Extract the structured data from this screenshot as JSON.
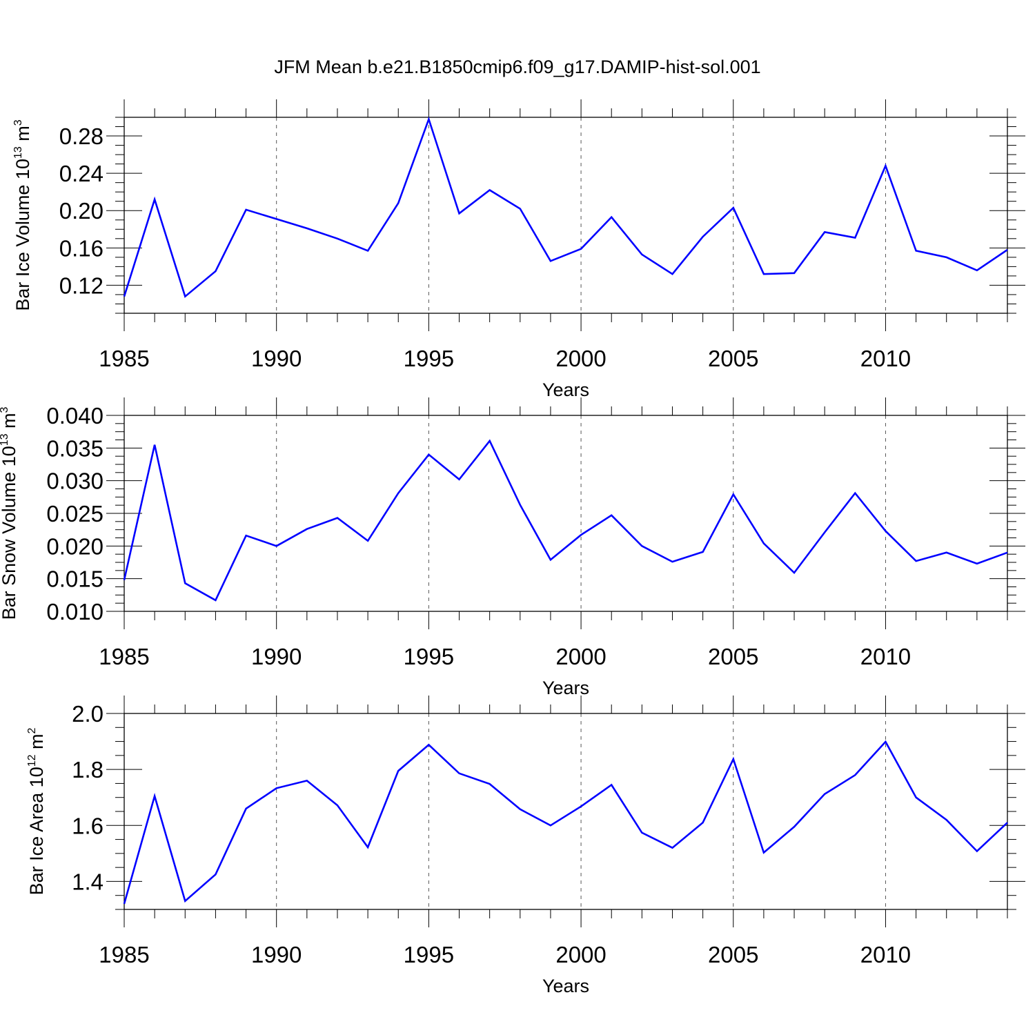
{
  "title": "JFM Mean b.e21.B1850cmip6.f09_g17.DAMIP-hist-sol.001",
  "colors": {
    "line": "#0000ff",
    "axis": "#000000",
    "grid": "#555555"
  },
  "chart_data": [
    {
      "type": "line",
      "series_name": "Bar Ice Volume",
      "ylabel": {
        "base": "Bar Ice Volume 10",
        "exp": "13",
        "unit": " m",
        "unit_exp": "3"
      },
      "xlabel": "Years",
      "xlim": [
        1985,
        2014
      ],
      "ylim": [
        0.09,
        0.3
      ],
      "xticks": [
        1985,
        1990,
        1995,
        2000,
        2005,
        2010
      ],
      "xtick_labels": [
        "1985",
        "1990",
        "1995",
        "2000",
        "2005",
        "2010"
      ],
      "yticks": [
        0.12,
        0.16,
        0.2,
        0.24,
        0.28
      ],
      "ytick_labels": [
        "0.12",
        "0.16",
        "0.20",
        "0.24",
        "0.28"
      ],
      "x": [
        1985,
        1986,
        1987,
        1988,
        1989,
        1990,
        1991,
        1992,
        1993,
        1994,
        1995,
        1996,
        1997,
        1998,
        1999,
        2000,
        2001,
        2002,
        2003,
        2004,
        2005,
        2006,
        2007,
        2008,
        2009,
        2010,
        2011,
        2012,
        2013,
        2014
      ],
      "values": [
        0.108,
        0.212,
        0.108,
        0.135,
        0.201,
        0.191,
        0.181,
        0.17,
        0.157,
        0.208,
        0.298,
        0.197,
        0.222,
        0.202,
        0.146,
        0.159,
        0.193,
        0.153,
        0.132,
        0.172,
        0.203,
        0.132,
        0.133,
        0.177,
        0.171,
        0.248,
        0.157,
        0.15,
        0.136,
        0.158
      ]
    },
    {
      "type": "line",
      "series_name": "Bar Snow Volume",
      "ylabel": {
        "base": "Bar Snow Volume 10",
        "exp": "13",
        "unit": " m",
        "unit_exp": "3"
      },
      "xlabel": "Years",
      "xlim": [
        1985,
        2014
      ],
      "ylim": [
        0.01,
        0.04
      ],
      "xticks": [
        1985,
        1990,
        1995,
        2000,
        2005,
        2010
      ],
      "xtick_labels": [
        "1985",
        "1990",
        "1995",
        "2000",
        "2005",
        "2010"
      ],
      "yticks": [
        0.01,
        0.015,
        0.02,
        0.025,
        0.03,
        0.035,
        0.04
      ],
      "ytick_labels": [
        "0.010",
        "0.015",
        "0.020",
        "0.025",
        "0.030",
        "0.035",
        "0.040"
      ],
      "x": [
        1985,
        1986,
        1987,
        1988,
        1989,
        1990,
        1991,
        1992,
        1993,
        1994,
        1995,
        1996,
        1997,
        1998,
        1999,
        2000,
        2001,
        2002,
        2003,
        2004,
        2005,
        2006,
        2007,
        2008,
        2009,
        2010,
        2011,
        2012,
        2013,
        2014
      ],
      "values": [
        0.0148,
        0.0355,
        0.0143,
        0.0117,
        0.0216,
        0.02,
        0.0226,
        0.0243,
        0.0208,
        0.0281,
        0.034,
        0.0302,
        0.0361,
        0.0263,
        0.0179,
        0.0217,
        0.0247,
        0.02,
        0.0176,
        0.0191,
        0.0279,
        0.0204,
        0.0159,
        0.0221,
        0.0281,
        0.0223,
        0.0177,
        0.019,
        0.0173,
        0.019
      ]
    },
    {
      "type": "line",
      "series_name": "Bar Ice Area",
      "ylabel": {
        "base": "Bar Ice Area 10",
        "exp": "12",
        "unit": " m",
        "unit_exp": "2"
      },
      "xlabel": "Years",
      "xlim": [
        1985,
        2014
      ],
      "ylim": [
        1.3,
        2.0
      ],
      "xticks": [
        1985,
        1990,
        1995,
        2000,
        2005,
        2010
      ],
      "xtick_labels": [
        "1985",
        "1990",
        "1995",
        "2000",
        "2005",
        "2010"
      ],
      "yticks": [
        1.4,
        1.6,
        1.8,
        2.0
      ],
      "ytick_labels": [
        "1.4",
        "1.6",
        "1.8",
        "2.0"
      ],
      "x": [
        1985,
        1986,
        1987,
        1988,
        1989,
        1990,
        1991,
        1992,
        1993,
        1994,
        1995,
        1996,
        1997,
        1998,
        1999,
        2000,
        2001,
        2002,
        2003,
        2004,
        2005,
        2006,
        2007,
        2008,
        2009,
        2010,
        2011,
        2012,
        2013,
        2014
      ],
      "values": [
        1.32,
        1.705,
        1.33,
        1.425,
        1.66,
        1.733,
        1.76,
        1.672,
        1.522,
        1.795,
        1.888,
        1.786,
        1.748,
        1.658,
        1.6,
        1.668,
        1.745,
        1.574,
        1.52,
        1.61,
        1.837,
        1.503,
        1.595,
        1.712,
        1.78,
        1.899,
        1.7,
        1.62,
        1.508,
        1.61
      ]
    }
  ]
}
